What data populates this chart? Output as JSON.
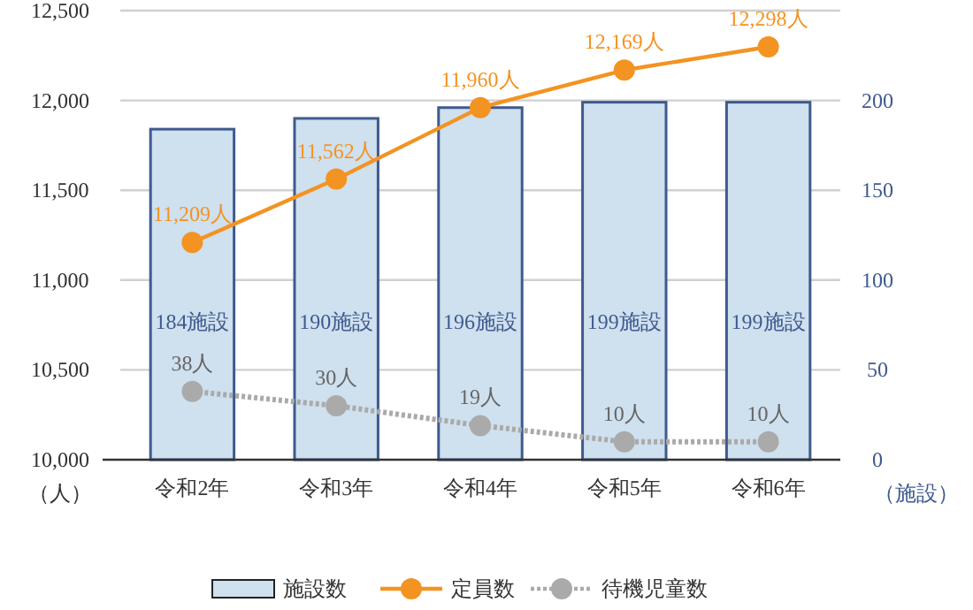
{
  "chart_data": {
    "type": "bar",
    "categories": [
      "令和2年",
      "令和3年",
      "令和4年",
      "令和5年",
      "令和6年"
    ],
    "series": [
      {
        "name": "施設数",
        "axis": "y2",
        "color": "#cfe0ee",
        "values": [
          184,
          190,
          196,
          199,
          199
        ],
        "value_labels": [
          "184施設",
          "190施設",
          "196施設",
          "199施設",
          "199施設"
        ]
      },
      {
        "name": "定員数",
        "type": "line",
        "color": "#f39322",
        "values": [
          11209,
          11562,
          11960,
          12169,
          12298
        ],
        "value_labels": [
          "11,209人",
          "11,562人",
          "11,960人",
          "12,169人",
          "12,298人"
        ]
      },
      {
        "name": "待機児童数",
        "type": "line",
        "axis": "y2",
        "color": "#aaaaaa",
        "line_style": "dotted",
        "values": [
          38,
          30,
          19,
          10,
          10
        ],
        "value_labels": [
          "38人",
          "30人",
          "19人",
          "10人",
          "10人"
        ]
      }
    ],
    "ylim": [
      10000,
      12500
    ],
    "yticks": [
      {
        "value": 10000,
        "label": "10,000"
      },
      {
        "value": 10500,
        "label": "10,500"
      },
      {
        "value": 11000,
        "label": "11,000"
      },
      {
        "value": 11500,
        "label": "11,500"
      },
      {
        "value": 12000,
        "label": "12,000"
      },
      {
        "value": 12500,
        "label": "12,500"
      }
    ],
    "y2lim": [
      0,
      250
    ],
    "y2ticks": [
      0,
      50,
      100,
      150,
      200
    ],
    "ylabel": "（人）",
    "y2label": "（施設）",
    "grid": "y",
    "legend": "bottom",
    "marker": "circle"
  }
}
